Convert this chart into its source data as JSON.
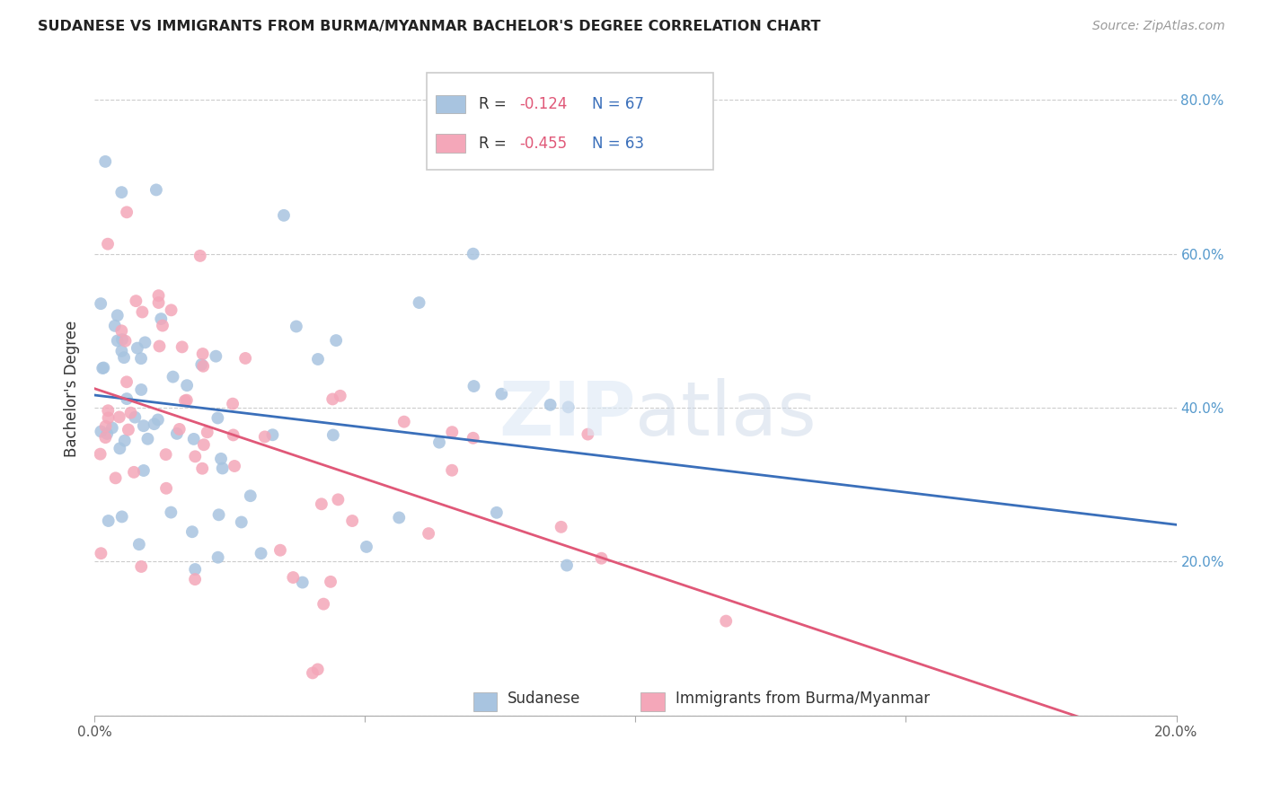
{
  "title": "SUDANESE VS IMMIGRANTS FROM BURMA/MYANMAR BACHELOR'S DEGREE CORRELATION CHART",
  "source": "Source: ZipAtlas.com",
  "ylabel": "Bachelor's Degree",
  "blue_R": -0.124,
  "blue_N": 67,
  "pink_R": -0.455,
  "pink_N": 63,
  "blue_color": "#a8c4e0",
  "pink_color": "#f4a7b9",
  "blue_line_color": "#3a6fba",
  "pink_line_color": "#e05878",
  "xlim": [
    0.0,
    0.2
  ],
  "ylim": [
    0.0,
    0.85
  ],
  "x_ticks": [
    0.0,
    0.05,
    0.1,
    0.15,
    0.2
  ],
  "x_tick_labels": [
    "0.0%",
    "",
    "",
    "",
    "20.0%"
  ],
  "y_ticks": [
    0.0,
    0.2,
    0.4,
    0.6,
    0.8
  ],
  "y_tick_labels": [
    "",
    "20.0%",
    "40.0%",
    "60.0%",
    "80.0%"
  ]
}
